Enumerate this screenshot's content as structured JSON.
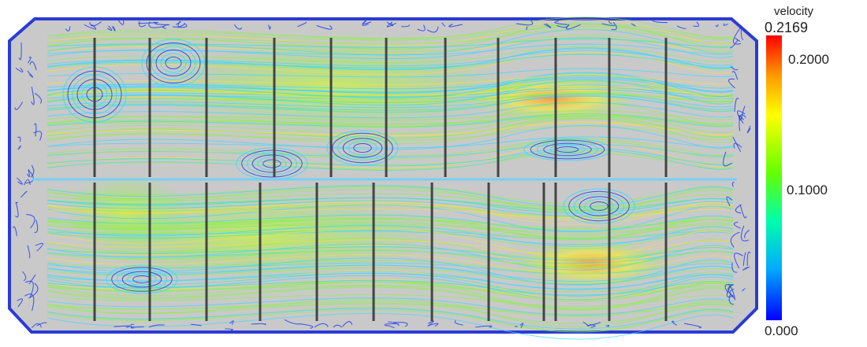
{
  "legend": {
    "title": "velocity",
    "max_label": "0.2169",
    "tick_high": "0.2000",
    "tick_mid": "0.1000",
    "min_label": "0.000",
    "colors": [
      "#0000ff",
      "#00aaff",
      "#00ffaa",
      "#66ff00",
      "#ffff00",
      "#ff9900",
      "#ff0000"
    ]
  },
  "colors": {
    "background": "#ffffff",
    "tank_fill": "#c9c9c9",
    "wall_outline": "#2b3bd6",
    "baffle": "#444444",
    "slow_flow": "#1f3ff0",
    "mid_flow": "#38d8ff",
    "fast_flow": "#8cf04a",
    "hot_flow": "#f0e040"
  }
}
